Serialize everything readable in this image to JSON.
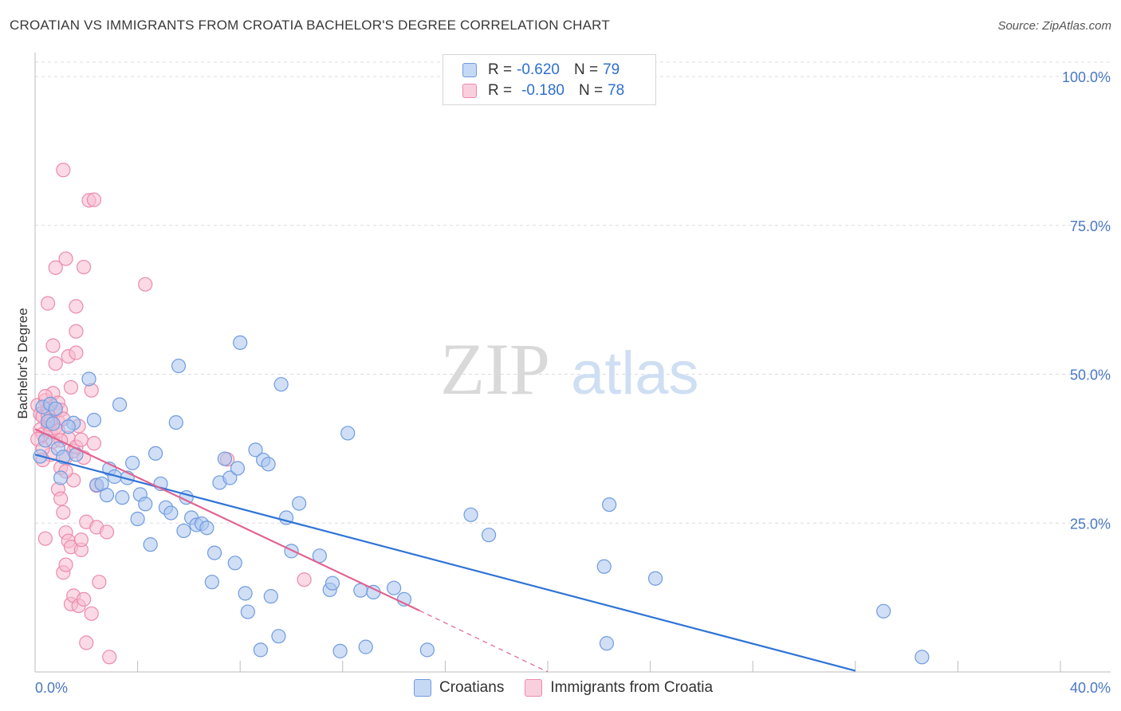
{
  "header": {
    "title": "CROATIAN VS IMMIGRANTS FROM CROATIA BACHELOR'S DEGREE CORRELATION CHART",
    "source": "Source: ZipAtlas.com"
  },
  "legend": {
    "series1": {
      "r_label": "R =",
      "r_value": "-0.620",
      "n_label": "N =",
      "n_value": "79"
    },
    "series2": {
      "r_label": "R =",
      "r_value": "-0.180",
      "n_label": "N =",
      "n_value": "78"
    }
  },
  "bottom_legend": {
    "series1": "Croatians",
    "series2": "Immigrants from Croatia"
  },
  "watermark": {
    "part1": "ZIP",
    "part2": "atlas"
  },
  "colors": {
    "blue_fill": "#a9c4ee",
    "blue_stroke": "#6f9be0",
    "blue_line": "#2e73d6",
    "pink_fill": "#f7bcd0",
    "pink_stroke": "#ec8aab",
    "pink_line": "#e2628f",
    "grid": "#dcdcdc",
    "tick_text": "#4a78c2"
  },
  "chart_data": {
    "type": "scatter",
    "title": "CROATIAN VS IMMIGRANTS FROM CROATIA BACHELOR'S DEGREE CORRELATION CHART",
    "xlabel": "",
    "ylabel": "Bachelor's Degree",
    "xlim": [
      0,
      40
    ],
    "ylim": [
      0,
      100
    ],
    "x_tick_labels": [
      "0.0%",
      "40.0%"
    ],
    "y_ticks": [
      25,
      50,
      75,
      100
    ],
    "y_tick_labels": [
      "25.0%",
      "50.0%",
      "75.0%",
      "100.0%"
    ],
    "grid": true,
    "series": [
      {
        "name": "Croatians",
        "r": -0.62,
        "n": 79,
        "trend": {
          "x": [
            0,
            32
          ],
          "y": [
            36.5,
            0.2
          ]
        },
        "points": [
          [
            0.2,
            36.2
          ],
          [
            0.3,
            44.5
          ],
          [
            0.5,
            42.1
          ],
          [
            0.6,
            45.0
          ],
          [
            0.7,
            41.7
          ],
          [
            0.9,
            37.5
          ],
          [
            1.0,
            32.6
          ],
          [
            1.1,
            36.1
          ],
          [
            1.5,
            41.8
          ],
          [
            1.6,
            36.5
          ],
          [
            2.1,
            49.2
          ],
          [
            2.3,
            42.3
          ],
          [
            2.4,
            31.4
          ],
          [
            2.6,
            31.6
          ],
          [
            2.8,
            29.7
          ],
          [
            2.9,
            34.1
          ],
          [
            3.1,
            32.8
          ],
          [
            3.3,
            44.9
          ],
          [
            3.4,
            29.3
          ],
          [
            3.6,
            32.6
          ],
          [
            3.8,
            35.1
          ],
          [
            4.0,
            25.7
          ],
          [
            4.1,
            29.8
          ],
          [
            4.3,
            28.2
          ],
          [
            4.5,
            21.4
          ],
          [
            4.7,
            36.7
          ],
          [
            4.9,
            31.6
          ],
          [
            5.1,
            27.6
          ],
          [
            5.3,
            26.7
          ],
          [
            5.5,
            41.9
          ],
          [
            5.6,
            51.4
          ],
          [
            5.8,
            23.7
          ],
          [
            5.9,
            29.3
          ],
          [
            6.1,
            25.9
          ],
          [
            6.3,
            24.7
          ],
          [
            6.5,
            24.9
          ],
          [
            6.7,
            24.2
          ],
          [
            6.9,
            15.1
          ],
          [
            7.0,
            20.0
          ],
          [
            7.2,
            31.8
          ],
          [
            7.4,
            35.8
          ],
          [
            7.6,
            32.6
          ],
          [
            7.8,
            18.3
          ],
          [
            7.9,
            34.2
          ],
          [
            8.0,
            55.3
          ],
          [
            8.2,
            13.2
          ],
          [
            8.3,
            10.1
          ],
          [
            8.6,
            37.3
          ],
          [
            8.8,
            3.7
          ],
          [
            8.9,
            35.6
          ],
          [
            9.1,
            34.9
          ],
          [
            9.2,
            12.7
          ],
          [
            9.5,
            6.0
          ],
          [
            9.6,
            48.3
          ],
          [
            9.8,
            25.9
          ],
          [
            10.0,
            20.3
          ],
          [
            10.3,
            28.3
          ],
          [
            11.1,
            19.5
          ],
          [
            11.5,
            13.8
          ],
          [
            11.6,
            14.9
          ],
          [
            11.9,
            3.5
          ],
          [
            12.2,
            40.1
          ],
          [
            12.7,
            13.7
          ],
          [
            12.9,
            4.2
          ],
          [
            13.2,
            13.4
          ],
          [
            14.0,
            14.1
          ],
          [
            14.4,
            12.2
          ],
          [
            15.3,
            3.7
          ],
          [
            17.0,
            26.4
          ],
          [
            17.7,
            23.0
          ],
          [
            22.2,
            17.7
          ],
          [
            22.3,
            4.8
          ],
          [
            22.4,
            28.1
          ],
          [
            24.2,
            15.7
          ],
          [
            33.1,
            10.2
          ],
          [
            34.6,
            2.5
          ],
          [
            0.4,
            38.9
          ],
          [
            1.3,
            41.2
          ],
          [
            0.8,
            44.2
          ]
        ]
      },
      {
        "name": "Immigrants from Croatia",
        "r": -0.18,
        "n": 78,
        "trend": {
          "x": [
            0,
            15
          ],
          "y": [
            40.8,
            10.3
          ]
        },
        "trend_dashed": {
          "x": [
            15,
            20
          ],
          "y": [
            10.3,
            0
          ]
        },
        "points": [
          [
            0.1,
            44.8
          ],
          [
            0.2,
            43.3
          ],
          [
            0.2,
            40.7
          ],
          [
            0.3,
            39.9
          ],
          [
            0.3,
            42.9
          ],
          [
            0.4,
            45.6
          ],
          [
            0.5,
            41.6
          ],
          [
            0.5,
            44.1
          ],
          [
            0.6,
            36.5
          ],
          [
            0.6,
            40.3
          ],
          [
            0.7,
            46.8
          ],
          [
            0.7,
            38.7
          ],
          [
            0.8,
            43.7
          ],
          [
            0.8,
            41.1
          ],
          [
            0.9,
            42.0
          ],
          [
            0.9,
            45.2
          ],
          [
            1.0,
            44.0
          ],
          [
            1.1,
            42.5
          ],
          [
            1.2,
            36.1
          ],
          [
            1.3,
            39.3
          ],
          [
            1.4,
            47.8
          ],
          [
            1.5,
            37.1
          ],
          [
            1.6,
            37.8
          ],
          [
            1.7,
            41.3
          ],
          [
            1.8,
            39.0
          ],
          [
            0.5,
            61.9
          ],
          [
            0.7,
            54.8
          ],
          [
            0.8,
            51.8
          ],
          [
            0.8,
            67.9
          ],
          [
            0.9,
            30.7
          ],
          [
            1.0,
            34.3
          ],
          [
            1.0,
            29.1
          ],
          [
            1.1,
            26.8
          ],
          [
            1.1,
            16.7
          ],
          [
            1.2,
            18.0
          ],
          [
            1.2,
            23.4
          ],
          [
            1.2,
            69.4
          ],
          [
            1.3,
            53.0
          ],
          [
            1.3,
            22.0
          ],
          [
            1.4,
            21.0
          ],
          [
            1.4,
            11.4
          ],
          [
            1.5,
            32.2
          ],
          [
            1.5,
            12.8
          ],
          [
            1.6,
            53.6
          ],
          [
            1.6,
            57.2
          ],
          [
            1.6,
            61.4
          ],
          [
            1.7,
            11.1
          ],
          [
            1.8,
            20.5
          ],
          [
            1.8,
            22.2
          ],
          [
            1.9,
            68.0
          ],
          [
            1.9,
            12.2
          ],
          [
            2.0,
            4.9
          ],
          [
            2.0,
            25.2
          ],
          [
            2.1,
            79.2
          ],
          [
            2.2,
            47.3
          ],
          [
            2.2,
            9.8
          ],
          [
            2.3,
            79.3
          ],
          [
            2.4,
            31.3
          ],
          [
            2.4,
            24.3
          ],
          [
            2.5,
            15.1
          ],
          [
            2.8,
            23.5
          ],
          [
            2.9,
            2.5
          ],
          [
            1.1,
            84.3
          ],
          [
            4.3,
            65.1
          ],
          [
            7.5,
            35.7
          ],
          [
            10.5,
            15.5
          ],
          [
            0.1,
            39.1
          ],
          [
            0.3,
            37.5
          ],
          [
            0.4,
            46.3
          ],
          [
            0.6,
            42.2
          ],
          [
            0.9,
            40.5
          ],
          [
            1.0,
            38.9
          ],
          [
            1.2,
            33.7
          ],
          [
            0.3,
            35.6
          ],
          [
            0.5,
            43.1
          ],
          [
            1.9,
            36.0
          ],
          [
            2.3,
            38.4
          ],
          [
            0.4,
            22.4
          ]
        ]
      }
    ]
  }
}
